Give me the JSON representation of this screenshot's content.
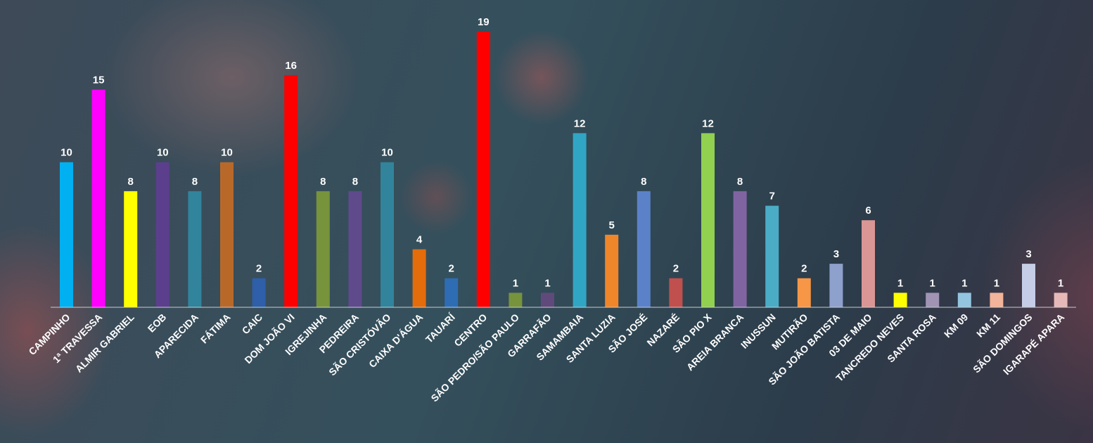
{
  "chart_data": {
    "type": "bar",
    "categories": [
      "CAMPINHO",
      "1ª TRAVESSA",
      "ALMIR GABRIEL",
      "EOB",
      "APARECIDA",
      "FÁTIMA",
      "CAIC",
      "DOM JOÃO VI",
      "IGREJINHA",
      "PEDREIRA",
      "SÃO CRISTÓVÃO",
      "CAIXA D'ÁGUA",
      "TAUARÍ",
      "CENTRO",
      "SÃO PEDRO/SÃO PAULO",
      "GARRAFÃO",
      "SAMAMBAIA",
      "SANTA LUZIA",
      "SÃO JOSÉ",
      "NAZARÉ",
      "SÃO PIO X",
      "AREIA BRANCA",
      "INUSSUN",
      "MUTIRÃO",
      "SÃO JOÃO BATISTA",
      "03 DE MAIO",
      "TANCREDO NEVES",
      "SANTA ROSA",
      "KM 09",
      "KM 11",
      "SÃO DOMINGOS",
      "IGARAPÉ APARA"
    ],
    "values": [
      10,
      15,
      8,
      10,
      8,
      10,
      2,
      16,
      8,
      8,
      10,
      4,
      2,
      19,
      1,
      1,
      12,
      5,
      8,
      2,
      12,
      8,
      7,
      2,
      3,
      6,
      1,
      1,
      1,
      1,
      3,
      1
    ],
    "colors": [
      "#00b0f0",
      "#ff00ff",
      "#ffff00",
      "#5b3f8c",
      "#31849b",
      "#b8692a",
      "#2e5fa8",
      "#ff0000",
      "#77933c",
      "#5f4a8b",
      "#31849b",
      "#e46c0a",
      "#2e6db4",
      "#ff0000",
      "#77933c",
      "#604a7b",
      "#31a6c4",
      "#f0862a",
      "#5b82c8",
      "#c0504d",
      "#92d050",
      "#8064a2",
      "#4bacc6",
      "#f79646",
      "#8ea0cc",
      "#d99694",
      "#ffff00",
      "#a093b3",
      "#93c5df",
      "#f2b49a",
      "#c5cee6",
      "#e6b9b8"
    ],
    "label_color": "#ffffff",
    "ylim": [
      0,
      19
    ],
    "grid": false,
    "legend": "none",
    "xlabel": "",
    "ylabel": "",
    "title": ""
  }
}
